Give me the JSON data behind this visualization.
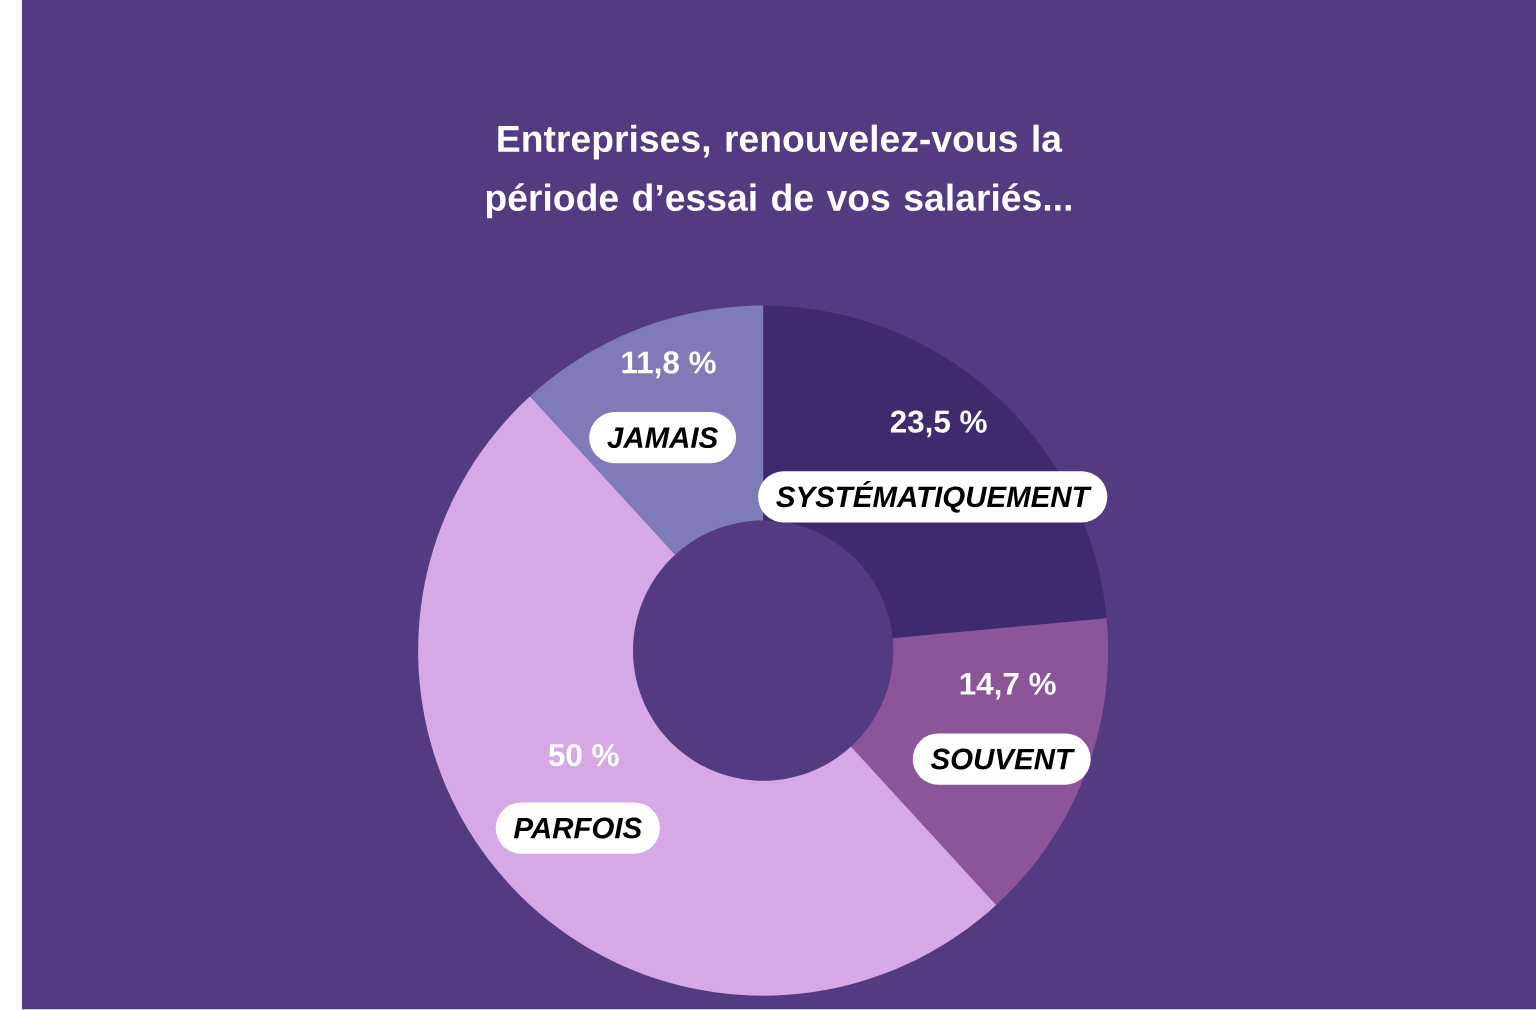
{
  "chart_data": {
    "type": "donut",
    "title": "Entreprises, renouvelez-vous la période d’essai de vos salariés...",
    "categories": [
      "SYSTÉMATIQUEMENT",
      "SOUVENT",
      "PARFOIS",
      "JAMAIS"
    ],
    "values": [
      23.5,
      14.7,
      50,
      11.8
    ],
    "value_labels": [
      "23,5 %",
      "14,7 %",
      "50 %",
      "11,8 %"
    ],
    "colors": [
      "#3f2a6e",
      "#8c5499",
      "#d6a8e6",
      "#7f7bb8"
    ]
  }
}
